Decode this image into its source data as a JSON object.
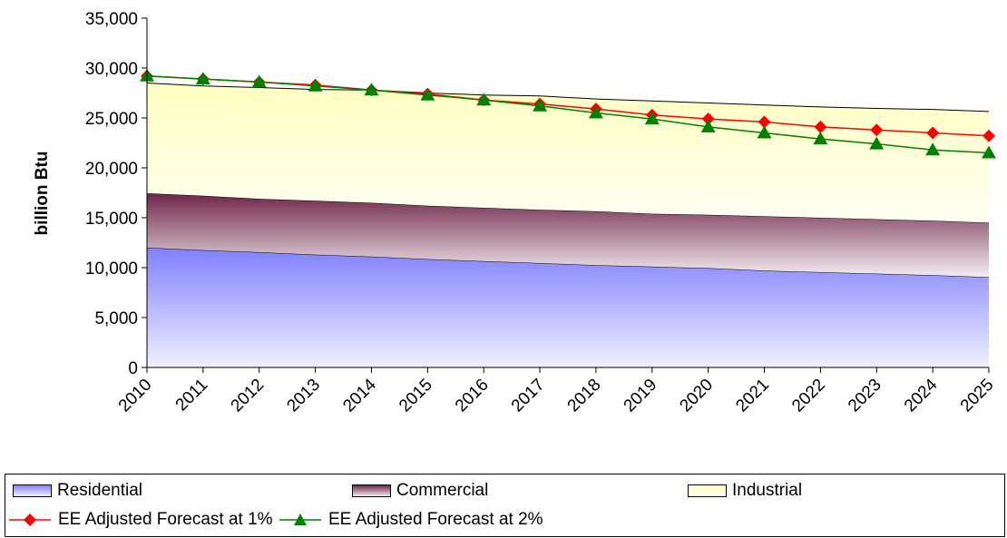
{
  "chart_data": {
    "type": "area",
    "title": "",
    "xlabel": "",
    "ylabel": "billion Btu",
    "ylim": [
      0,
      35000
    ],
    "y_ticks": [
      0,
      5000,
      10000,
      15000,
      20000,
      25000,
      30000,
      35000
    ],
    "y_tick_labels": [
      "0",
      "5,000",
      "10,000",
      "15,000",
      "20,000",
      "25,000",
      "30,000",
      "35,000"
    ],
    "categories": [
      "2010",
      "2011",
      "2012",
      "2013",
      "2014",
      "2015",
      "2016",
      "2017",
      "2018",
      "2019",
      "2020",
      "2021",
      "2022",
      "2023",
      "2024",
      "2025"
    ],
    "stacked": true,
    "grid": false,
    "legend_position": "bottom",
    "series": [
      {
        "name": "Residential",
        "type": "area",
        "color": "#8080ff",
        "values": [
          12000,
          11750,
          11550,
          11300,
          11100,
          10850,
          10650,
          10450,
          10250,
          10100,
          9950,
          9700,
          9550,
          9400,
          9250,
          9050
        ]
      },
      {
        "name": "Commercial",
        "type": "area",
        "color": "#7a3050",
        "values": [
          5450,
          5450,
          5350,
          5400,
          5400,
          5350,
          5350,
          5350,
          5400,
          5300,
          5350,
          5450,
          5450,
          5450,
          5450,
          5450
        ]
      },
      {
        "name": "Industrial",
        "type": "area",
        "color": "#ffffcc",
        "values": [
          11050,
          11000,
          11150,
          11150,
          11300,
          11300,
          11300,
          11400,
          11250,
          11300,
          11200,
          11150,
          11100,
          11100,
          11150,
          11150
        ]
      },
      {
        "name": "EE Adjusted Forecast at 1%",
        "type": "line",
        "color": "#ff0000",
        "marker": "diamond",
        "values": [
          29200,
          28900,
          28600,
          28300,
          27800,
          27400,
          26800,
          26400,
          25900,
          25300,
          24900,
          24600,
          24100,
          23800,
          23500,
          23200
        ]
      },
      {
        "name": "EE Adjusted Forecast at 2%",
        "type": "line",
        "color": "#008000",
        "marker": "triangle",
        "values": [
          29200,
          28900,
          28600,
          28200,
          27800,
          27300,
          26800,
          26200,
          25500,
          24900,
          24100,
          23500,
          22900,
          22400,
          21800,
          21500
        ]
      }
    ]
  }
}
